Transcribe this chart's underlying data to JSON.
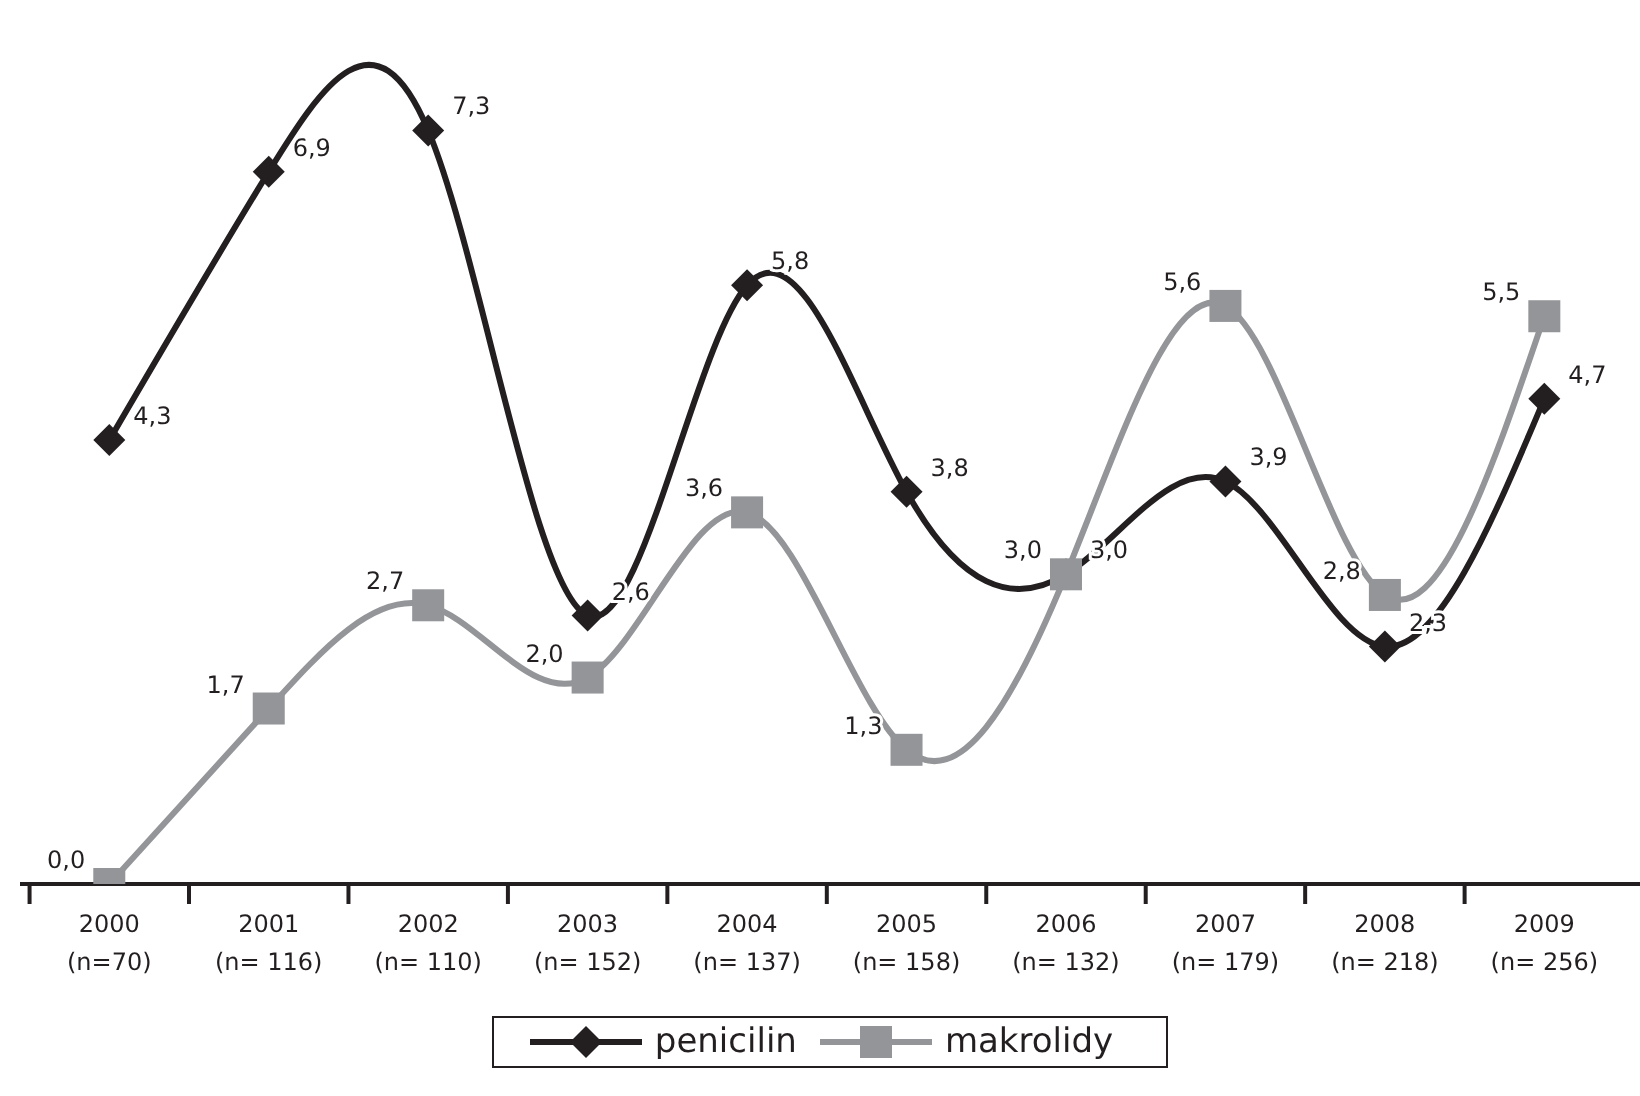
{
  "chart_data": {
    "type": "line",
    "categories": [
      "2000\n(n=70)",
      "2001\n(n= 116)",
      "2002\n(n= 110)",
      "2003\n(n= 152)",
      "2004\n(n= 137)",
      "2005\n(n= 158)",
      "2006\n(n= 132)",
      "2007\n(n= 179)",
      "2008\n(n= 218)",
      "2009\n(n= 256)"
    ],
    "series": [
      {
        "name": "penicilin",
        "color": "#231f20",
        "marker": "diamond",
        "values": [
          4.3,
          6.9,
          7.3,
          2.6,
          5.8,
          3.8,
          3.0,
          3.9,
          2.3,
          4.7
        ],
        "value_labels": [
          "4,3",
          "6,9",
          "7,3",
          "2,6",
          "5,8",
          "3,8",
          "3,0",
          "3,9",
          "2,3",
          "4,7"
        ]
      },
      {
        "name": "makrolidy",
        "color": "#939598",
        "marker": "square",
        "values": [
          0.0,
          1.7,
          2.7,
          2.0,
          3.6,
          1.3,
          3.0,
          5.6,
          2.8,
          5.5
        ],
        "value_labels": [
          "0,0",
          "1,7",
          "2,7",
          "2,0",
          "3,6",
          "1,3",
          "3,0",
          "5,6",
          "2,8",
          "5,5"
        ]
      }
    ],
    "legend": "bottom",
    "grid": false
  }
}
